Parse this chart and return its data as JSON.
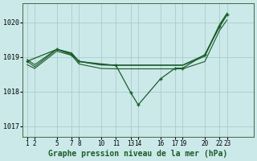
{
  "background_color": "#cce9e9",
  "grid_color": "#aacccc",
  "line_color": "#1a5c2a",
  "marker_color": "#1a5c2a",
  "title": "Graphe pression niveau de la mer (hPa)",
  "title_fontsize": 7,
  "ylim": [
    1016.7,
    1020.55
  ],
  "yticks": [
    1017,
    1018,
    1019,
    1020
  ],
  "xlim": [
    -0.3,
    15.3
  ],
  "xtick_positions": [
    0,
    0.5,
    2,
    3,
    3.5,
    5,
    6,
    7,
    7.5,
    9,
    10,
    10.5,
    12,
    13,
    13.5
  ],
  "xtick_labels": [
    "1",
    "2",
    "5",
    "7",
    "8",
    "10",
    "11",
    "13",
    "14",
    "16",
    "17",
    "19",
    "20",
    "22",
    "23"
  ],
  "line1_no_marker": {
    "x": [
      0,
      0.5,
      2,
      3,
      3.5,
      5,
      6,
      7,
      7.5,
      9,
      10,
      10.5,
      12,
      13,
      13.5
    ],
    "y": [
      1018.88,
      1018.72,
      1019.22,
      1019.1,
      1018.87,
      1018.77,
      1018.76,
      1018.76,
      1018.76,
      1018.76,
      1018.76,
      1018.76,
      1019.02,
      1019.92,
      1020.22
    ]
  },
  "line2_no_marker": {
    "x": [
      0,
      0.5,
      2,
      3,
      3.5,
      5,
      6,
      7,
      7.5,
      9,
      10,
      10.5,
      12,
      13,
      13.5
    ],
    "y": [
      1018.78,
      1018.67,
      1019.17,
      1019.05,
      1018.8,
      1018.67,
      1018.66,
      1018.66,
      1018.66,
      1018.66,
      1018.66,
      1018.66,
      1018.87,
      1019.77,
      1020.07
    ]
  },
  "line3_no_marker": {
    "x": [
      0,
      0.5,
      2,
      3,
      3.5,
      5,
      6,
      7,
      7.5,
      9,
      10,
      10.5,
      12,
      13,
      13.5
    ],
    "y": [
      1018.93,
      1018.78,
      1019.23,
      1019.12,
      1018.88,
      1018.78,
      1018.77,
      1018.77,
      1018.77,
      1018.77,
      1018.77,
      1018.77,
      1019.06,
      1019.94,
      1020.27
    ]
  },
  "line_with_marker": {
    "x": [
      0,
      2,
      3,
      3.5,
      6,
      7,
      7.5,
      9,
      10,
      10.5,
      12,
      13,
      13.5
    ],
    "y": [
      1018.88,
      1019.22,
      1019.07,
      1018.87,
      1018.76,
      1017.97,
      1017.62,
      1018.37,
      1018.68,
      1018.68,
      1019.07,
      1019.87,
      1020.22
    ]
  }
}
